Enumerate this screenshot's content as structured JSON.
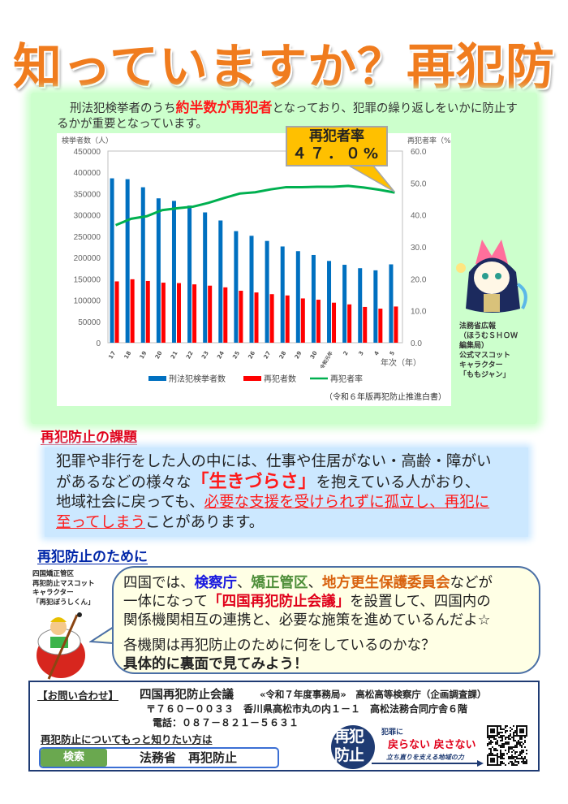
{
  "title": "知っていますか？再犯防止",
  "intro": {
    "pre": "刑法犯検挙者のうち",
    "highlight": "約半数が再犯者",
    "post": "となっており、犯罪の繰り返しをいかに防止するかが重要となっています。"
  },
  "callout": {
    "label": "再犯者率",
    "value": "４７．０%"
  },
  "chart_data": {
    "type": "bar",
    "left_axis_label": "検挙者数（人）",
    "right_axis_label": "再犯者率（%）",
    "xlabel": "年次（年）",
    "categories": [
      "17",
      "18",
      "19",
      "20",
      "21",
      "22",
      "23",
      "24",
      "25",
      "26",
      "27",
      "28",
      "29",
      "30",
      "令和元年",
      "2",
      "3",
      "4",
      "5"
    ],
    "ylim_left": [
      0,
      450000
    ],
    "yticks_left": [
      "0",
      "50000",
      "100000",
      "150000",
      "200000",
      "250000",
      "300000",
      "350000",
      "400000",
      "450000"
    ],
    "ylim_right": [
      0,
      60
    ],
    "yticks_right": [
      "0.0",
      "10.0",
      "20.0",
      "30.0",
      "40.0",
      "50.0",
      "60.0"
    ],
    "series": [
      {
        "name": "刑法犯検挙者数",
        "type": "bar",
        "axis": "left",
        "color": "#0070c0",
        "values": [
          386000,
          384000,
          365000,
          339000,
          333000,
          322000,
          306000,
          287000,
          262000,
          251000,
          239000,
          226000,
          215000,
          206000,
          192000,
          183000,
          175000,
          170000,
          184000
        ]
      },
      {
        "name": "再犯者数",
        "type": "bar",
        "axis": "left",
        "color": "#ff0000",
        "values": [
          144000,
          149000,
          145000,
          141000,
          140000,
          137000,
          134000,
          130000,
          122000,
          118000,
          114000,
          111000,
          104000,
          101000,
          94000,
          90000,
          84000,
          80000,
          85000
        ]
      },
      {
        "name": "再犯者率",
        "type": "line",
        "axis": "right",
        "color": "#00b050",
        "values": [
          36.8,
          38.8,
          39.6,
          41.5,
          42.1,
          42.6,
          43.8,
          45.3,
          46.7,
          47.1,
          48.0,
          48.7,
          48.7,
          48.8,
          48.8,
          49.1,
          48.6,
          47.9,
          47.0
        ]
      }
    ],
    "grid": false,
    "legend_position": "bottom",
    "source": "（令和６年版再犯防止推進白書）"
  },
  "mascot1_label": [
    "法務省広報",
    "（ほうむＳＨＯＷ",
    "編集局）",
    "公式マスコット",
    "キャラクター",
    "「ももジャン」"
  ],
  "section1": {
    "heading": "再犯防止の課題",
    "l1": "犯罪や非行をした人の中には、仕事や住居がない・高齢・障がい",
    "l2a": "があるなどの様々な",
    "l2b": "「生きづらさ」",
    "l2c": "を抱えている人がおり、",
    "l3a": "地域社会に戻っても、",
    "l3b": "必要な支援を受けられずに孤立し、再犯に",
    "l4a": "至ってしまう",
    "l4b": "ことがあります。"
  },
  "section2": {
    "heading": "再犯防止のために",
    "mascot_label": [
      "四国矯正管区",
      "再犯防止マスコット",
      "キャラクター",
      "「再犯ぼうしくん」"
    ],
    "b1a": "四国では、",
    "b1b": "検察庁",
    "b1c": "、",
    "b1d": "矯正管区",
    "b1e": "、",
    "b1f": "地方更生保護委員会",
    "b1g": "などが",
    "b2a": "一体になって",
    "b2b": "「四国再犯防止会議」",
    "b2c": "を設置して、四国内の",
    "b3": "関係機関相互の連携と、必要な施策を進めているんだよ☆",
    "q1": "各機関は再犯防止のために何をしているのかな？",
    "q2": "具体的に裏面で見てみよう！"
  },
  "contact": {
    "label": "【お問い合わせ】",
    "org": "四国再犯防止会議",
    "office": "«令和７年度事務局»　高松高等検察庁（企画調査課）",
    "address": "〒７６０－００３３　香川県高松市丸の内１－１　高松法務合同庁舎６階",
    "phone": "電話：０８７－８２１－５６３１",
    "more": "再犯防止についてもっと知りたい方は",
    "search_button": "検索",
    "search_value": "法務省　再犯防止"
  },
  "logo": {
    "mark": "再犯防止",
    "line1": "犯罪に",
    "line2a": "戻らない",
    "line2b": "戻さない",
    "line3": "立ち直りを支える地域の力"
  }
}
